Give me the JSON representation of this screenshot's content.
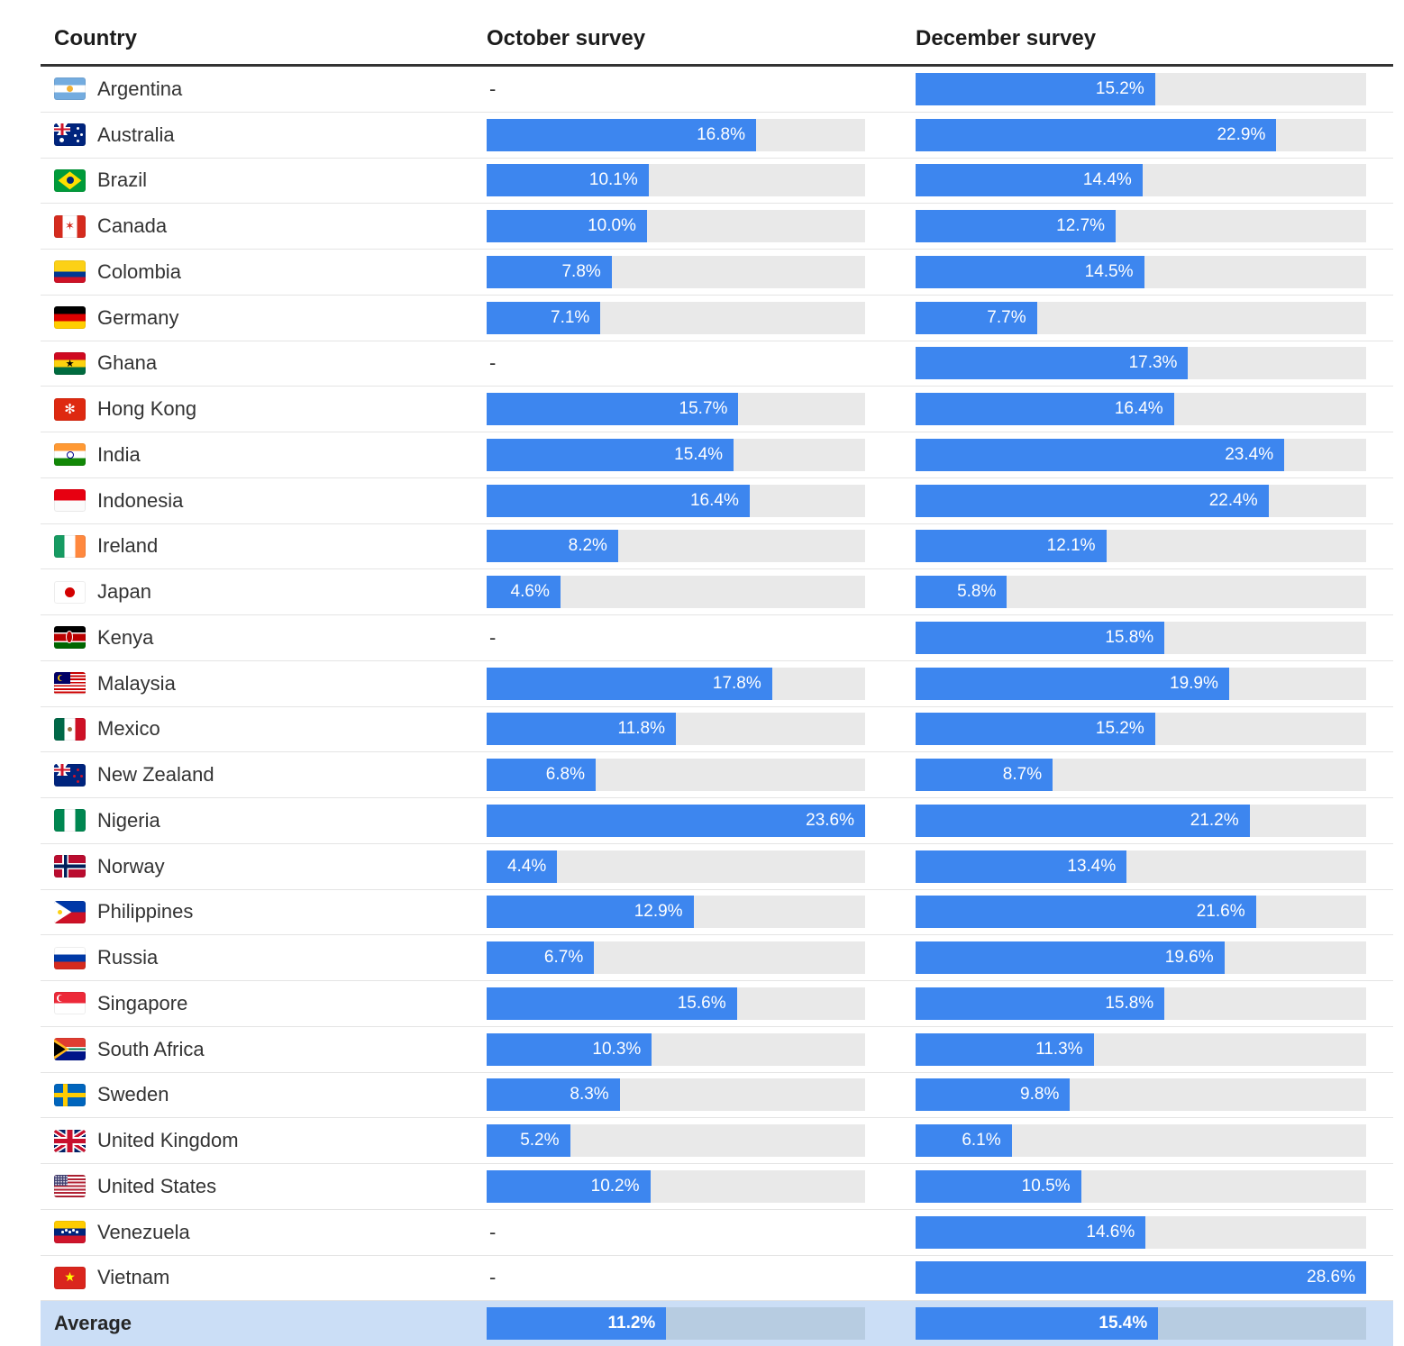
{
  "table": {
    "columns": [
      "Country",
      "October survey",
      "December survey"
    ],
    "average_label": "Average",
    "missing_placeholder": "-",
    "value_suffix": "%",
    "flags": [
      "argentina",
      "australia",
      "brazil",
      "canada",
      "colombia",
      "germany",
      "ghana",
      "hongkong",
      "india",
      "indonesia",
      "ireland",
      "japan",
      "kenya",
      "malaysia",
      "mexico",
      "newzealand",
      "nigeria",
      "norway",
      "philippines",
      "russia",
      "singapore",
      "southafrica",
      "sweden",
      "uk",
      "us",
      "venezuela",
      "vietnam"
    ]
  },
  "colors": {
    "bar_blue": "#3d86ef",
    "track_gray": "#e9e9e9",
    "average_row_bg": "#cbdef6",
    "average_track": "#b7cce1",
    "header_line": "#333333",
    "row_separator": "#e4e4e4",
    "text": "#333333",
    "bar_label": "#ffffff"
  },
  "chart_data": {
    "type": "bar",
    "title": "",
    "orientation": "horizontal",
    "value_format": "percent",
    "categories": [
      "Argentina",
      "Australia",
      "Brazil",
      "Canada",
      "Colombia",
      "Germany",
      "Ghana",
      "Hong Kong",
      "India",
      "Indonesia",
      "Ireland",
      "Japan",
      "Kenya",
      "Malaysia",
      "Mexico",
      "New Zealand",
      "Nigeria",
      "Norway",
      "Philippines",
      "Russia",
      "Singapore",
      "South Africa",
      "Sweden",
      "United Kingdom",
      "United States",
      "Venezuela",
      "Vietnam"
    ],
    "series": [
      {
        "name": "October survey",
        "values": [
          null,
          16.8,
          10.1,
          10.0,
          7.8,
          7.1,
          null,
          15.7,
          15.4,
          16.4,
          8.2,
          4.6,
          null,
          17.8,
          11.8,
          6.8,
          23.6,
          4.4,
          12.9,
          6.7,
          15.6,
          10.3,
          8.3,
          5.2,
          10.2,
          null,
          null
        ]
      },
      {
        "name": "December survey",
        "values": [
          15.2,
          22.9,
          14.4,
          12.7,
          14.5,
          7.7,
          17.3,
          16.4,
          23.4,
          22.4,
          12.1,
          5.8,
          15.8,
          19.9,
          15.2,
          8.7,
          21.2,
          13.4,
          21.6,
          19.6,
          15.8,
          11.3,
          9.8,
          6.1,
          10.5,
          14.6,
          28.6
        ]
      }
    ],
    "average": {
      "october": 11.2,
      "december": 15.4
    },
    "axis": {
      "october_max": 23.6,
      "december_max": 28.6
    },
    "xlim": [
      0,
      28.6
    ],
    "grid": false,
    "legend_position": "column-headers"
  }
}
